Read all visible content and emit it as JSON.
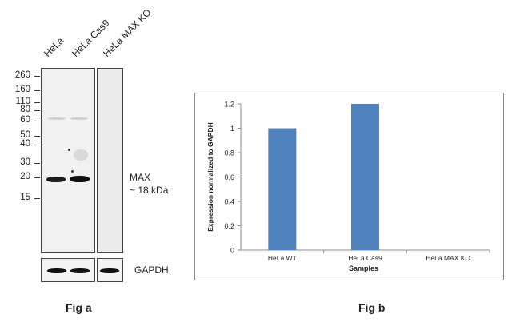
{
  "fig_a": {
    "lanes": [
      "HeLa",
      "HeLa Cas9",
      "HeLa MAX KO"
    ],
    "mw_markers": [
      "260",
      "160",
      "110",
      "80",
      "60",
      "50",
      "40",
      "30",
      "20",
      "15"
    ],
    "target_label": "MAX",
    "target_size": "~ 18 kDa",
    "loading_control": "GAPDH",
    "caption": "Fig a"
  },
  "fig_b": {
    "caption": "Fig b"
  },
  "chart_data": {
    "type": "bar",
    "categories": [
      "HeLa WT",
      "HeLa Cas9",
      "HeLa MAX KO"
    ],
    "values": [
      1.0,
      1.2,
      0.0
    ],
    "xlabel": "Samples",
    "ylabel": "Expression normalized to GAPDH",
    "ylim": [
      0,
      1.2
    ],
    "yticks": [
      "0",
      "0.2",
      "0.4",
      "0.6",
      "0.8",
      "1",
      "1.2"
    ],
    "grid": false,
    "legend": "none",
    "bar_color": "#4f81bd"
  }
}
